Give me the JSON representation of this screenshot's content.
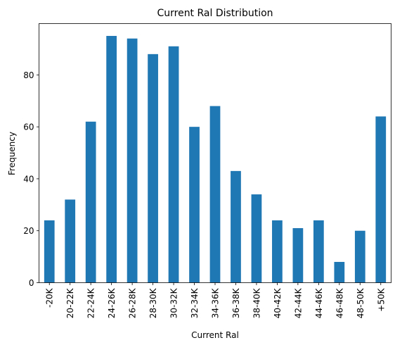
{
  "chart_data": {
    "type": "bar",
    "title": "Current Ral Distribution",
    "xlabel": "Current Ral",
    "ylabel": "Frequency",
    "categories": [
      "-20K",
      "20-22K",
      "22-24K",
      "24-26K",
      "26-28K",
      "28-30K",
      "30-32K",
      "32-34K",
      "34-36K",
      "36-38K",
      "38-40K",
      "40-42K",
      "42-44K",
      "44-46K",
      "46-48K",
      "48-50K",
      "+50K"
    ],
    "values": [
      24,
      32,
      62,
      95,
      94,
      88,
      91,
      60,
      68,
      43,
      34,
      24,
      21,
      24,
      8,
      20,
      64
    ],
    "ylim": [
      0,
      99.75
    ],
    "yticks": [
      0,
      20,
      40,
      60,
      80
    ],
    "grid": false,
    "legend": "none",
    "bar_color": "#1f77b4"
  }
}
